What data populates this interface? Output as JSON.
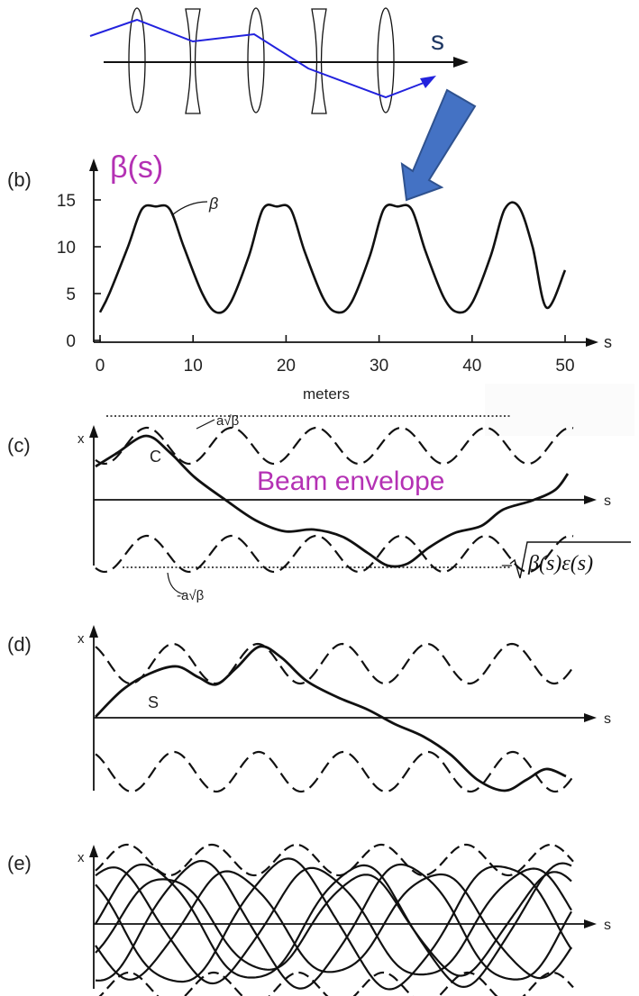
{
  "top": {
    "s_label": "s",
    "icons": [
      "thin-lens-icon",
      "concave-lens-icon",
      "arrow-down-left-icon"
    ]
  },
  "panel_b": {
    "tag": "(b)",
    "beta_title": "β(s)",
    "curve_label": "β",
    "s_axis_label": "s",
    "x_axis_label": "meters"
  },
  "panel_c": {
    "tag": "(c)",
    "x_label": "x",
    "s_label": "s",
    "upper_env_label": "a√β",
    "lower_env_label": "-a√β",
    "trajectory_label": "C",
    "envelope_caption": "Beam envelope",
    "formula_minus": "−",
    "formula": "β(s)ε(s)"
  },
  "panel_d": {
    "tag": "(d)",
    "x_label": "x",
    "s_label": "s",
    "trajectory_label": "S"
  },
  "panel_e": {
    "tag": "(e)",
    "x_label": "x",
    "s_label": "s"
  },
  "chart_data": {
    "type": "line",
    "title": "β(s)",
    "xlabel": "meters",
    "ylabel": "",
    "xlim": [
      0,
      50
    ],
    "ylim": [
      0,
      15
    ],
    "x_ticks": [
      "0",
      "10",
      "20",
      "30",
      "40",
      "50"
    ],
    "y_ticks": [
      "0",
      "5",
      "10",
      "15"
    ],
    "series": [
      {
        "name": "β",
        "x": [
          0,
          1,
          3,
          4.5,
          6,
          7.5,
          9,
          11,
          12.5,
          14,
          16,
          17.5,
          19,
          20.5,
          22,
          24,
          25.5,
          27,
          29,
          30.5,
          32,
          33.5,
          35,
          37,
          38.5,
          40,
          42,
          43.5,
          45,
          46.5,
          48,
          50
        ],
        "values": [
          3,
          5,
          10,
          14,
          14.3,
          14,
          10,
          5,
          3,
          4,
          9,
          14,
          14.3,
          14,
          9.5,
          4.5,
          3,
          4,
          9,
          14,
          14.3,
          14,
          9.5,
          4.5,
          3,
          4,
          9,
          14,
          14.3,
          10,
          3.5,
          7.5
        ]
      }
    ]
  }
}
